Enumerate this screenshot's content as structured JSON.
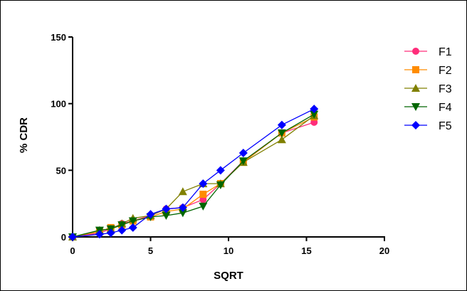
{
  "chart_data": {
    "type": "line",
    "title": "",
    "xlabel": "SQRT",
    "ylabel": "% CDR",
    "xlim": [
      0,
      20
    ],
    "ylim": [
      0,
      150
    ],
    "x_ticks": [
      0,
      5,
      10,
      15,
      20
    ],
    "y_ticks": [
      0,
      50,
      100,
      150
    ],
    "grid": false,
    "legend_position": "right",
    "series": [
      {
        "name": "F1",
        "color": "#ff2d7a",
        "marker": "circle",
        "points": [
          [
            0,
            0
          ],
          [
            1.73,
            3
          ],
          [
            2.45,
            6
          ],
          [
            3.16,
            10
          ],
          [
            3.87,
            12
          ],
          [
            5,
            16
          ],
          [
            6,
            21
          ],
          [
            7.07,
            22
          ],
          [
            8.37,
            28
          ],
          [
            9.49,
            40
          ],
          [
            10.95,
            57
          ],
          [
            13.42,
            78
          ],
          [
            15.49,
            86
          ]
        ]
      },
      {
        "name": "F2",
        "color": "#ff8c00",
        "marker": "square",
        "points": [
          [
            0,
            0
          ],
          [
            1.73,
            4
          ],
          [
            2.45,
            7
          ],
          [
            3.16,
            9
          ],
          [
            3.87,
            12
          ],
          [
            5,
            15
          ],
          [
            6,
            19
          ],
          [
            7.07,
            21
          ],
          [
            8.37,
            32
          ],
          [
            9.49,
            40
          ],
          [
            10.95,
            56
          ],
          [
            13.42,
            78
          ],
          [
            15.49,
            90
          ]
        ]
      },
      {
        "name": "F3",
        "color": "#808000",
        "marker": "triangle-up",
        "points": [
          [
            0,
            0
          ],
          [
            1.73,
            5
          ],
          [
            2.45,
            6
          ],
          [
            3.16,
            10
          ],
          [
            3.87,
            14
          ],
          [
            5,
            16
          ],
          [
            6,
            21
          ],
          [
            7.07,
            34
          ],
          [
            8.37,
            40
          ],
          [
            9.49,
            40
          ],
          [
            10.95,
            56
          ],
          [
            13.42,
            73
          ],
          [
            15.49,
            91
          ]
        ]
      },
      {
        "name": "F4",
        "color": "#006600",
        "marker": "triangle-down",
        "points": [
          [
            0,
            0
          ],
          [
            1.73,
            5
          ],
          [
            2.45,
            6
          ],
          [
            3.16,
            9
          ],
          [
            3.87,
            12
          ],
          [
            5,
            15
          ],
          [
            6,
            16
          ],
          [
            7.07,
            18
          ],
          [
            8.37,
            23
          ],
          [
            9.49,
            39
          ],
          [
            10.95,
            57
          ],
          [
            13.42,
            78
          ],
          [
            15.49,
            92
          ]
        ]
      },
      {
        "name": "F5",
        "color": "#0000ff",
        "marker": "diamond",
        "points": [
          [
            0,
            0
          ],
          [
            1.73,
            2
          ],
          [
            2.45,
            3
          ],
          [
            3.16,
            5
          ],
          [
            3.87,
            7
          ],
          [
            5,
            17
          ],
          [
            6,
            21
          ],
          [
            7.07,
            22
          ],
          [
            8.37,
            40
          ],
          [
            9.49,
            50
          ],
          [
            10.95,
            63
          ],
          [
            13.42,
            84
          ],
          [
            15.49,
            96
          ]
        ]
      }
    ]
  }
}
